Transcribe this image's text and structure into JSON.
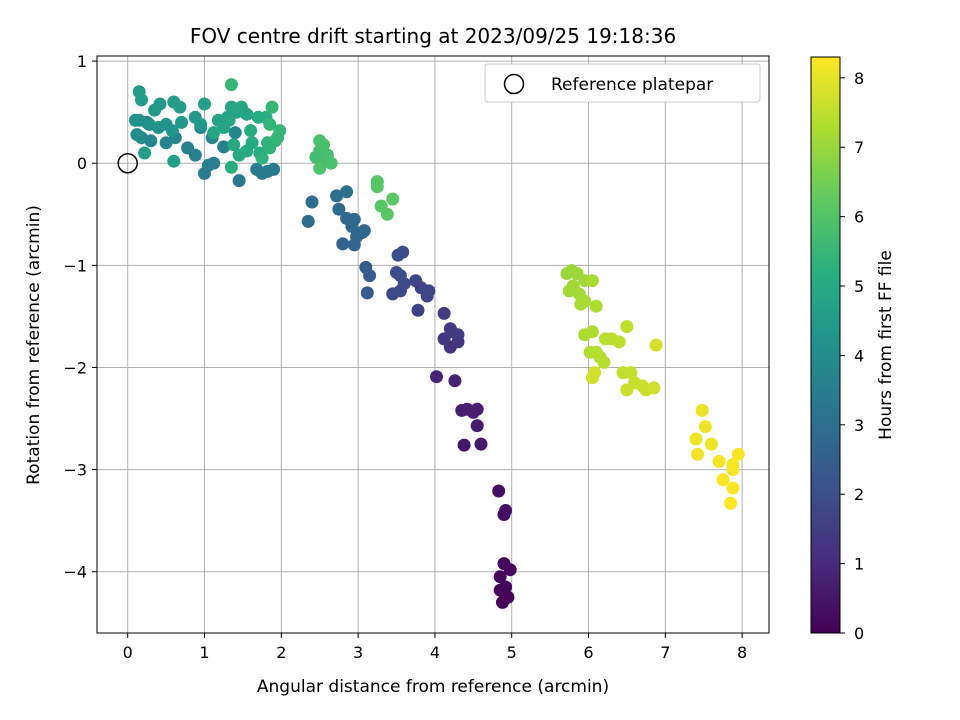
{
  "chart_data": {
    "type": "scatter",
    "title": "FOV centre drift starting at 2023/09/25 19:18:36",
    "xlabel": "Angular distance from reference (arcmin)",
    "ylabel": "Rotation from reference (arcmin)",
    "xlim": [
      -0.4,
      8.35
    ],
    "ylim": [
      -4.6,
      1.05
    ],
    "xticks": [
      "0",
      "1",
      "2",
      "3",
      "4",
      "5",
      "6",
      "7",
      "8"
    ],
    "yticks": [
      "1",
      "0",
      "−1",
      "−2",
      "−3",
      "−4"
    ],
    "grid": true,
    "legend": {
      "location": "upper right",
      "entries": [
        "Reference platepar"
      ]
    },
    "reference_point": {
      "x": 0,
      "y": 0
    },
    "colorbar": {
      "label": "Hours from first FF file",
      "range": [
        0,
        8.3
      ],
      "ticks": [
        "0",
        "1",
        "2",
        "3",
        "4",
        "5",
        "6",
        "7",
        "8"
      ],
      "colormap": "viridis"
    },
    "points": [
      [
        4.88,
        -4.3,
        0.05
      ],
      [
        4.95,
        -4.25,
        0.1
      ],
      [
        4.85,
        -4.18,
        0.12
      ],
      [
        4.92,
        -4.15,
        0.15
      ],
      [
        4.85,
        -4.05,
        0.18
      ],
      [
        4.98,
        -3.98,
        0.2
      ],
      [
        4.9,
        -3.92,
        0.22
      ],
      [
        4.9,
        -3.44,
        0.3
      ],
      [
        4.92,
        -3.4,
        0.32
      ],
      [
        4.83,
        -3.21,
        0.35
      ],
      [
        4.38,
        -2.76,
        0.55
      ],
      [
        4.6,
        -2.75,
        0.6
      ],
      [
        4.55,
        -2.57,
        0.62
      ],
      [
        4.35,
        -2.42,
        0.65
      ],
      [
        4.42,
        -2.41,
        0.68
      ],
      [
        4.55,
        -2.41,
        0.7
      ],
      [
        4.5,
        -2.44,
        0.72
      ],
      [
        4.26,
        -2.13,
        0.8
      ],
      [
        4.02,
        -2.09,
        0.85
      ],
      [
        4.2,
        -1.8,
        1.2
      ],
      [
        4.3,
        -1.75,
        1.25
      ],
      [
        4.22,
        -1.65,
        1.3
      ],
      [
        4.12,
        -1.72,
        1.35
      ],
      [
        4.3,
        -1.68,
        1.38
      ],
      [
        4.2,
        -1.62,
        1.4
      ],
      [
        4.12,
        -1.47,
        1.45
      ],
      [
        3.78,
        -1.44,
        1.6
      ],
      [
        3.9,
        -1.3,
        1.65
      ],
      [
        3.92,
        -1.25,
        1.7
      ],
      [
        3.82,
        -1.22,
        1.72
      ],
      [
        3.75,
        -1.15,
        1.75
      ],
      [
        3.45,
        -1.28,
        1.8
      ],
      [
        3.55,
        -1.25,
        1.82
      ],
      [
        3.6,
        -1.18,
        1.85
      ],
      [
        3.5,
        -1.07,
        1.9
      ],
      [
        3.55,
        -1.1,
        1.92
      ],
      [
        3.52,
        -0.9,
        1.95
      ],
      [
        3.58,
        -0.87,
        1.98
      ],
      [
        3.12,
        -1.27,
        2.3
      ],
      [
        3.15,
        -1.1,
        2.35
      ],
      [
        3.1,
        -1.02,
        2.4
      ],
      [
        2.8,
        -0.79,
        2.6
      ],
      [
        2.95,
        -0.8,
        2.65
      ],
      [
        2.98,
        -0.72,
        2.7
      ],
      [
        3.05,
        -0.68,
        2.72
      ],
      [
        3.08,
        -0.66,
        2.75
      ],
      [
        2.92,
        -0.62,
        2.78
      ],
      [
        2.85,
        -0.54,
        2.8
      ],
      [
        2.95,
        -0.55,
        2.82
      ],
      [
        2.75,
        -0.45,
        2.85
      ],
      [
        2.35,
        -0.57,
        2.9
      ],
      [
        2.4,
        -0.38,
        2.95
      ],
      [
        2.72,
        -0.32,
        3.0
      ],
      [
        2.85,
        -0.28,
        3.05
      ],
      [
        1.45,
        -0.17,
        3.3
      ],
      [
        1.75,
        -0.1,
        3.35
      ],
      [
        1.82,
        -0.08,
        3.38
      ],
      [
        1.9,
        -0.06,
        3.4
      ],
      [
        1.68,
        -0.06,
        3.42
      ],
      [
        1.0,
        -0.1,
        3.45
      ],
      [
        1.05,
        -0.02,
        3.5
      ],
      [
        1.12,
        0.0,
        3.52
      ],
      [
        0.88,
        0.08,
        3.55
      ],
      [
        1.25,
        0.16,
        3.6
      ],
      [
        0.78,
        0.15,
        3.62
      ],
      [
        1.1,
        0.25,
        3.65
      ],
      [
        0.62,
        0.25,
        3.7
      ],
      [
        0.5,
        0.2,
        3.72
      ],
      [
        1.4,
        0.3,
        3.75
      ],
      [
        0.95,
        0.35,
        3.78
      ],
      [
        0.3,
        0.22,
        3.8
      ],
      [
        0.25,
        0.4,
        3.82
      ],
      [
        0.18,
        0.25,
        3.85
      ],
      [
        0.12,
        0.28,
        4.0
      ],
      [
        0.15,
        0.42,
        4.05
      ],
      [
        0.1,
        0.42,
        4.1
      ],
      [
        0.28,
        0.38,
        4.15
      ],
      [
        0.4,
        0.35,
        4.2
      ],
      [
        0.5,
        0.38,
        4.25
      ],
      [
        0.58,
        0.32,
        4.3
      ],
      [
        0.7,
        0.4,
        4.35
      ],
      [
        0.88,
        0.45,
        4.4
      ],
      [
        0.95,
        0.38,
        4.42
      ],
      [
        0.42,
        0.58,
        4.45
      ],
      [
        0.35,
        0.52,
        4.48
      ],
      [
        0.18,
        0.62,
        4.5
      ],
      [
        0.15,
        0.7,
        4.52
      ],
      [
        0.6,
        0.6,
        4.55
      ],
      [
        0.68,
        0.55,
        4.6
      ],
      [
        0.22,
        0.1,
        4.62
      ],
      [
        0.6,
        0.02,
        4.65
      ],
      [
        1.0,
        0.58,
        4.7
      ],
      [
        1.18,
        0.42,
        4.72
      ],
      [
        1.3,
        0.45,
        4.75
      ],
      [
        1.42,
        0.5,
        4.78
      ],
      [
        1.55,
        0.48,
        4.8
      ],
      [
        1.35,
        0.55,
        4.82
      ],
      [
        1.48,
        0.55,
        4.85
      ],
      [
        1.25,
        0.35,
        4.88
      ],
      [
        1.32,
        0.42,
        4.9
      ],
      [
        1.12,
        0.3,
        4.92
      ],
      [
        1.38,
        0.18,
        4.95
      ],
      [
        1.45,
        0.08,
        4.98
      ],
      [
        1.55,
        0.12,
        5.0
      ],
      [
        1.62,
        0.2,
        5.02
      ],
      [
        1.72,
        0.1,
        5.05
      ],
      [
        1.6,
        0.32,
        5.08
      ],
      [
        1.7,
        0.45,
        5.1
      ],
      [
        1.8,
        0.45,
        5.12
      ],
      [
        1.35,
        -0.04,
        5.15
      ],
      [
        1.75,
        0.05,
        5.3
      ],
      [
        1.82,
        0.2,
        5.32
      ],
      [
        1.85,
        0.15,
        5.35
      ],
      [
        1.92,
        0.22,
        5.38
      ],
      [
        1.85,
        0.38,
        5.4
      ],
      [
        1.95,
        0.25,
        5.42
      ],
      [
        1.98,
        0.32,
        5.45
      ],
      [
        1.88,
        0.55,
        5.48
      ],
      [
        1.35,
        0.77,
        5.5
      ],
      [
        2.45,
        0.06,
        5.7
      ],
      [
        2.5,
        0.12,
        5.72
      ],
      [
        2.58,
        0.05,
        5.75
      ],
      [
        2.52,
        0.0,
        5.78
      ],
      [
        2.6,
        0.08,
        5.8
      ],
      [
        2.55,
        0.18,
        5.82
      ],
      [
        2.5,
        0.22,
        5.85
      ],
      [
        2.65,
        0.0,
        5.88
      ],
      [
        2.5,
        -0.05,
        5.9
      ],
      [
        3.25,
        -0.18,
        6.05
      ],
      [
        3.25,
        -0.23,
        6.08
      ],
      [
        3.3,
        -0.42,
        6.1
      ],
      [
        3.38,
        -0.5,
        6.12
      ],
      [
        3.45,
        -0.35,
        6.15
      ],
      [
        5.72,
        -1.08,
        7.0
      ],
      [
        5.78,
        -1.05,
        7.02
      ],
      [
        5.85,
        -1.08,
        7.05
      ],
      [
        5.95,
        -1.15,
        7.08
      ],
      [
        5.75,
        -1.25,
        7.1
      ],
      [
        5.8,
        -1.2,
        7.12
      ],
      [
        5.88,
        -1.28,
        7.15
      ],
      [
        5.95,
        -1.35,
        7.18
      ],
      [
        5.9,
        -1.38,
        7.2
      ],
      [
        6.05,
        -1.15,
        7.22
      ],
      [
        6.1,
        -1.4,
        7.25
      ],
      [
        5.95,
        -1.68,
        7.28
      ],
      [
        6.05,
        -1.65,
        7.3
      ],
      [
        6.02,
        -1.85,
        7.32
      ],
      [
        6.1,
        -1.85,
        7.35
      ],
      [
        6.15,
        -1.9,
        7.38
      ],
      [
        6.2,
        -1.95,
        7.4
      ],
      [
        6.22,
        -1.72,
        7.42
      ],
      [
        6.3,
        -1.72,
        7.45
      ],
      [
        6.4,
        -1.75,
        7.48
      ],
      [
        6.5,
        -1.6,
        7.5
      ],
      [
        6.45,
        -2.05,
        7.52
      ],
      [
        6.55,
        -2.05,
        7.55
      ],
      [
        6.6,
        -2.15,
        7.58
      ],
      [
        6.7,
        -2.18,
        7.6
      ],
      [
        6.75,
        -2.22,
        7.62
      ],
      [
        6.5,
        -2.22,
        7.65
      ],
      [
        6.85,
        -2.2,
        7.68
      ],
      [
        6.05,
        -2.1,
        7.7
      ],
      [
        6.08,
        -2.05,
        7.72
      ],
      [
        6.88,
        -1.78,
        7.75
      ],
      [
        7.48,
        -2.42,
        8.05
      ],
      [
        7.52,
        -2.58,
        8.08
      ],
      [
        7.4,
        -2.7,
        8.1
      ],
      [
        7.6,
        -2.75,
        8.12
      ],
      [
        7.42,
        -2.85,
        8.15
      ],
      [
        7.7,
        -2.92,
        8.18
      ],
      [
        7.88,
        -2.95,
        8.2
      ],
      [
        7.88,
        -3.0,
        8.22
      ],
      [
        7.95,
        -2.85,
        8.24
      ],
      [
        7.75,
        -3.1,
        8.25
      ],
      [
        7.88,
        -3.18,
        8.27
      ],
      [
        7.85,
        -3.33,
        8.3
      ]
    ]
  }
}
